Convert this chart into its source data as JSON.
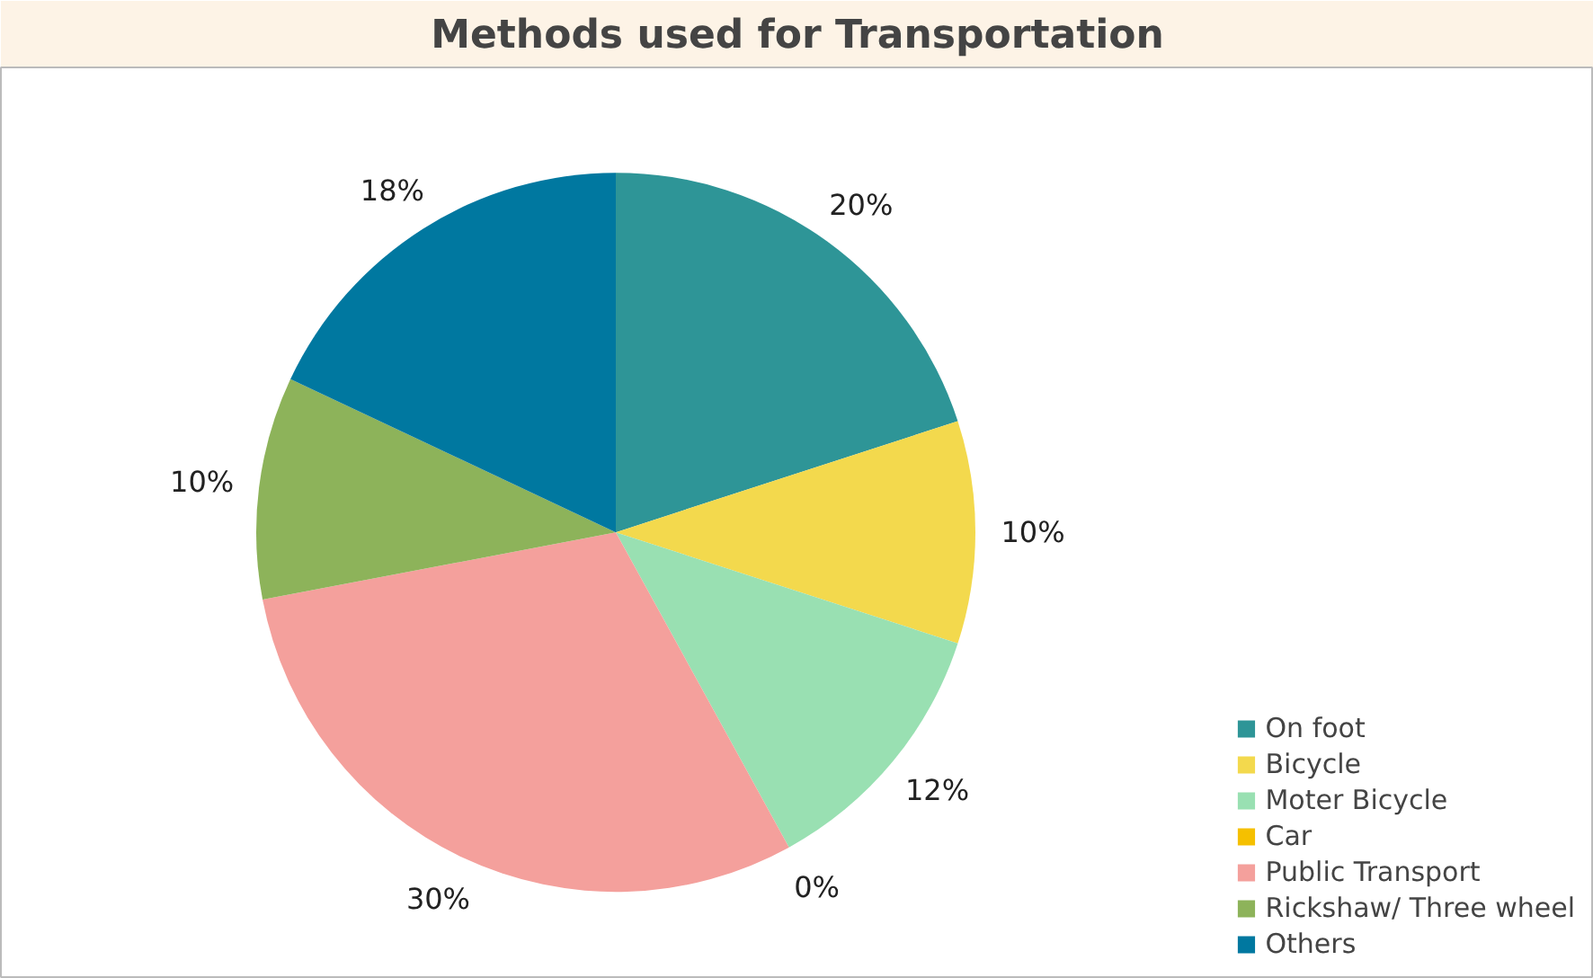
{
  "chart_data": {
    "type": "pie",
    "title": "Methods used for Transportation",
    "categories": [
      "On foot",
      "Bicycle",
      "Moter Bicycle",
      "Car",
      "Public Transport",
      "Rickshaw/ Three wheel",
      "Others"
    ],
    "values": [
      20,
      10,
      12,
      0,
      30,
      10,
      18
    ],
    "colors": [
      "#2e9597",
      "#f3d94d",
      "#99e0b2",
      "#f5c000",
      "#f4a09c",
      "#8db35a",
      "#0078a0"
    ],
    "value_labels": [
      "20%",
      "10%",
      "12%",
      "0%",
      "30%",
      "10%",
      "18%"
    ],
    "legend": "bottom right"
  }
}
